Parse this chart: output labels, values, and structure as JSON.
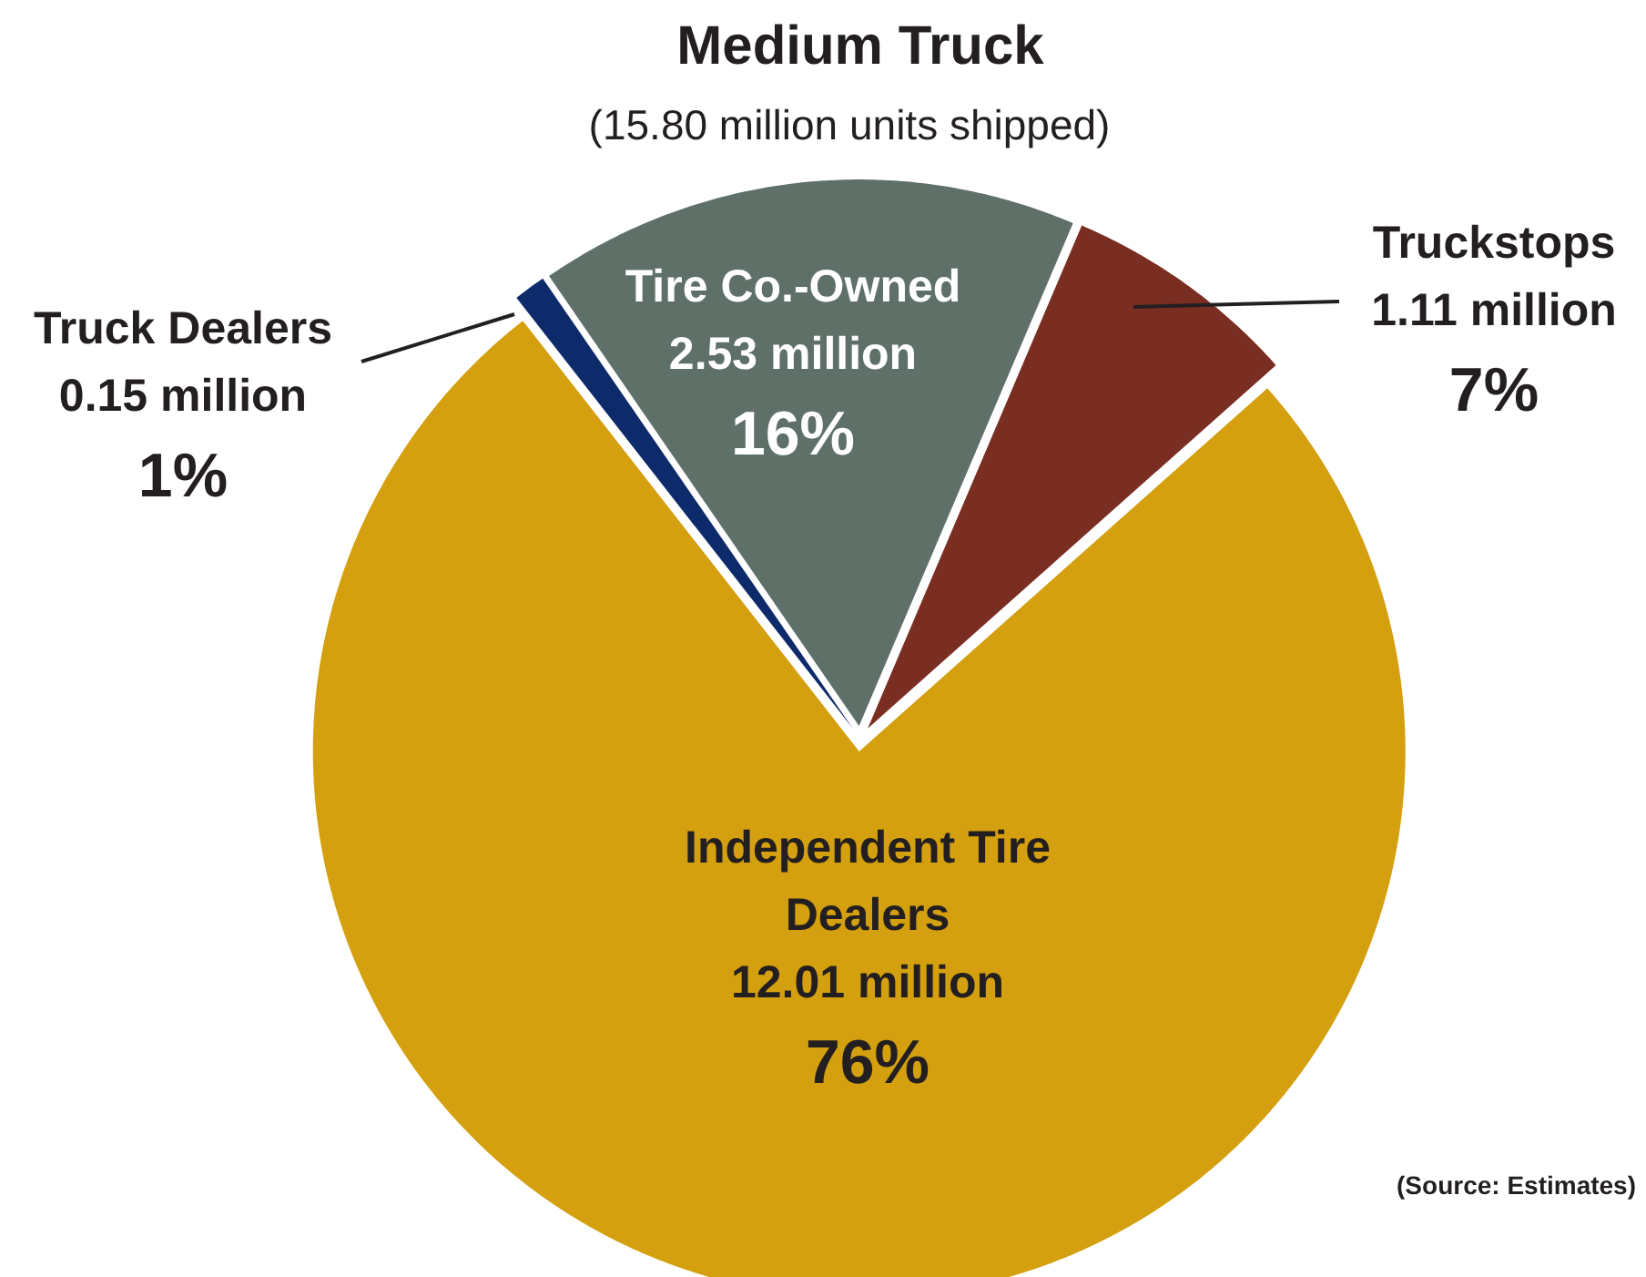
{
  "chart_data": {
    "type": "pie",
    "title": "Medium Truck",
    "subtitle": "(15.80 million units shipped)",
    "categories": [
      "Truck Dealers",
      "Tire Co.-Owned",
      "Truckstops",
      "Independent Tire Dealers"
    ],
    "values": [
      0.15,
      2.53,
      1.11,
      12.01
    ],
    "colors": [
      "#0d2a6b",
      "#5e7068",
      "#7a2e22",
      "#d4a00f"
    ],
    "value_labels": [
      "0.15 million",
      "2.53 million",
      "1.11 million",
      "12.01 million"
    ],
    "annotations": [
      {
        "text": "1%",
        "x": "Truck Dealers"
      },
      {
        "text": "16%",
        "x": "Tire Co.-Owned"
      },
      {
        "text": "7%",
        "x": "Truckstops"
      },
      {
        "text": "76%",
        "x": "Independent Tire Dealers"
      },
      "(Source: Estimates)"
    ]
  }
}
